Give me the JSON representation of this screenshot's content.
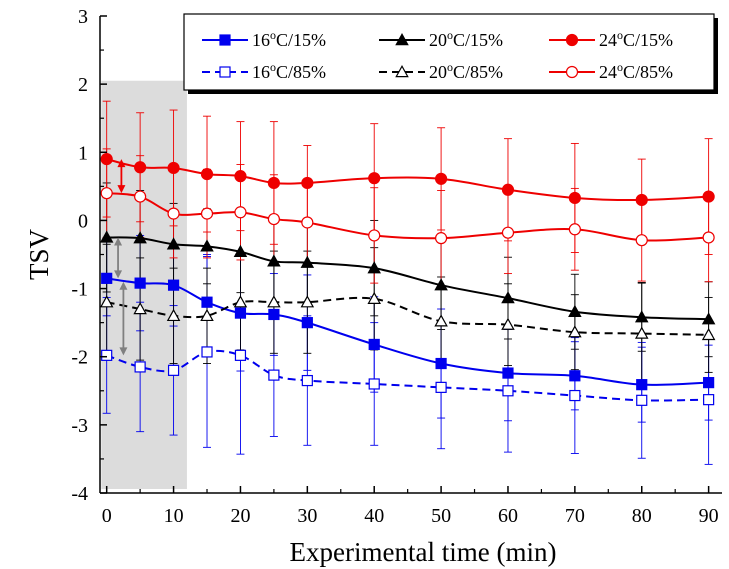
{
  "chart_data": {
    "type": "line",
    "xlabel": "Experimental time (min)",
    "ylabel": "TSV",
    "xlim": [
      -1,
      92
    ],
    "ylim": [
      -4,
      3
    ],
    "x_ticks": [
      0,
      10,
      20,
      30,
      40,
      50,
      60,
      70,
      80,
      90
    ],
    "y_ticks": [
      -4,
      -3,
      -2,
      -1,
      0,
      1,
      2,
      3
    ],
    "x_tick_labels": [
      "0",
      "10",
      "20",
      "30",
      "40",
      "50",
      "60",
      "70",
      "80",
      "90"
    ],
    "y_tick_labels": [
      "-4",
      "-3",
      "-2",
      "-1",
      "0",
      "1",
      "2",
      "3"
    ],
    "x": [
      0,
      5,
      10,
      15,
      20,
      25,
      30,
      40,
      50,
      60,
      70,
      80,
      90
    ],
    "legend_position": "top-right",
    "highlight_region": {
      "x_from": -0.8,
      "x_to": 12,
      "color": "#dcdcdc"
    },
    "series": [
      {
        "name": "16°C/15%",
        "name_parts": [
          "16",
          "o",
          "C/15%"
        ],
        "color": "#0000ee",
        "dash": "solid",
        "marker": "square",
        "filled": true,
        "values": [
          -0.85,
          -0.92,
          -0.95,
          -1.2,
          -1.36,
          -1.38,
          -1.5,
          -1.82,
          -2.1,
          -2.24,
          -2.28,
          -2.41,
          -2.38
        ],
        "error": [
          0.55,
          0.7,
          0.6,
          0.7,
          0.85,
          0.6,
          0.7,
          0.7,
          0.8,
          0.7,
          0.5,
          0.55,
          0.55
        ]
      },
      {
        "name": "20°C/15%",
        "name_parts": [
          "20",
          "o",
          "C/15%"
        ],
        "color": "#000000",
        "dash": "solid",
        "marker": "triangle",
        "filled": true,
        "values": [
          -0.25,
          -0.26,
          -0.35,
          -0.38,
          -0.46,
          -0.6,
          -0.62,
          -0.7,
          -0.95,
          -1.14,
          -1.34,
          -1.42,
          -1.45
        ],
        "error": [
          0.8,
          0.7,
          0.6,
          0.55,
          0.6,
          0.65,
          0.6,
          0.7,
          0.65,
          0.6,
          0.55,
          0.5,
          0.55
        ]
      },
      {
        "name": "24°C/15%",
        "name_parts": [
          "24",
          "o",
          "C/15%"
        ],
        "color": "#ee0000",
        "dash": "solid",
        "marker": "circle",
        "filled": true,
        "values": [
          0.9,
          0.78,
          0.77,
          0.68,
          0.65,
          0.55,
          0.55,
          0.62,
          0.61,
          0.45,
          0.33,
          0.3,
          0.35
        ],
        "error": [
          0.85,
          0.8,
          0.85,
          0.85,
          0.8,
          0.9,
          0.55,
          0.8,
          0.75,
          0.75,
          0.8,
          0.6,
          0.85
        ]
      },
      {
        "name": "16°C/85%",
        "name_parts": [
          "16",
          "o",
          "C/85%"
        ],
        "color": "#0000ee",
        "dash": "dashed",
        "marker": "square",
        "filled": false,
        "values": [
          -1.98,
          -2.15,
          -2.2,
          -1.93,
          -1.98,
          -2.27,
          -2.35,
          -2.4,
          -2.45,
          -2.5,
          -2.57,
          -2.64,
          -2.63
        ],
        "error": [
          0.85,
          0.95,
          0.95,
          1.4,
          1.45,
          0.9,
          0.95,
          0.9,
          0.9,
          0.9,
          0.85,
          0.85,
          0.95
        ]
      },
      {
        "name": "20°C/85%",
        "name_parts": [
          "20",
          "o",
          "C/85%"
        ],
        "color": "#000000",
        "dash": "dashed",
        "marker": "triangle",
        "filled": false,
        "values": [
          -1.2,
          -1.3,
          -1.4,
          -1.4,
          -1.2,
          -1.2,
          -1.2,
          -1.15,
          -1.48,
          -1.53,
          -1.64,
          -1.66,
          -1.68
        ],
        "error": [
          0.85,
          0.75,
          0.7,
          0.7,
          0.7,
          0.75,
          0.75,
          0.75,
          0.65,
          0.6,
          0.55,
          0.75,
          0.55
        ]
      },
      {
        "name": "24°C/85%",
        "name_parts": [
          "24",
          "o",
          "C/85%"
        ],
        "color": "#ee0000",
        "dash": "solid",
        "marker": "circle",
        "filled": false,
        "values": [
          0.4,
          0.35,
          0.1,
          0.1,
          0.12,
          0.02,
          -0.03,
          -0.22,
          -0.26,
          -0.18,
          -0.13,
          -0.29,
          -0.25
        ],
        "error": [
          0.65,
          0.6,
          0.65,
          0.65,
          0.7,
          0.65,
          0.6,
          0.7,
          0.7,
          0.6,
          0.6,
          0.6,
          0.65
        ]
      }
    ],
    "difference_arrows": [
      {
        "x": 2.2,
        "y_from": 0.9,
        "y_to": 0.4,
        "color": "#ee0000"
      },
      {
        "x": 1.7,
        "y_from": -0.25,
        "y_to": -0.85,
        "color": "#808080"
      },
      {
        "x": 2.5,
        "y_from": -0.9,
        "y_to": -1.98,
        "color": "#808080"
      }
    ]
  }
}
